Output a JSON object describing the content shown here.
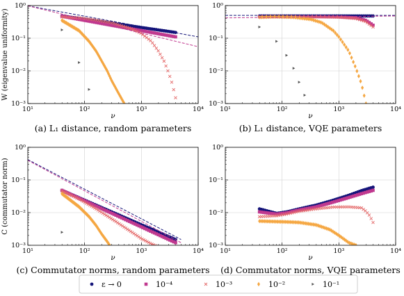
{
  "colors": {
    "eps0": "#15157a",
    "e4": "#c0398f",
    "e3": "#e46a6a",
    "e2": "#f5a742",
    "e1": "#555555",
    "fit_dark": "#15157a",
    "fit_magenta": "#c0398f",
    "grid": "#d0d0d0"
  },
  "legend": {
    "items": [
      {
        "key": "eps0",
        "label": "ε → 0",
        "marker": "circle"
      },
      {
        "key": "e4",
        "label": "10⁻⁴",
        "marker": "square"
      },
      {
        "key": "e3",
        "label": "10⁻³",
        "marker": "x"
      },
      {
        "key": "e2",
        "label": "10⁻²",
        "marker": "diamond"
      },
      {
        "key": "e1",
        "label": "10⁻¹",
        "marker": "triangle-right"
      }
    ]
  },
  "chart_data": [
    {
      "type": "scatter",
      "caption": "(a) L₁ distance, random parameters",
      "xlabel": "ν",
      "ylabel": "W (eigenvalue uniformity)",
      "xscale": "log",
      "yscale": "log",
      "xlim": [
        10,
        10000
      ],
      "ylim": [
        0.001,
        1
      ],
      "xticks": [
        "10¹",
        "10²",
        "10³",
        "10⁴"
      ],
      "yticks": [
        "10⁻³",
        "10⁻²",
        "10⁻¹",
        "10⁰"
      ],
      "grid": true,
      "fit_lines": [
        {
          "color_key": "fit_dark",
          "x": [
            10,
            10000
          ],
          "y": [
            0.98,
            0.11
          ]
        },
        {
          "color_key": "fit_magenta",
          "x": [
            10,
            10000
          ],
          "y": [
            0.98,
            0.055
          ]
        }
      ],
      "series": [
        {
          "key": "eps0",
          "x": [
            40,
            4000
          ],
          "y": [
            0.48,
            0.15
          ]
        },
        {
          "key": "e4",
          "x": [
            40,
            4000
          ],
          "y": [
            0.47,
            0.11
          ]
        },
        {
          "key": "e3",
          "x": [
            40,
            80,
            160,
            320,
            640,
            1000,
            1500,
            2000,
            2500,
            3000,
            3500,
            4000
          ],
          "y": [
            0.45,
            0.42,
            0.36,
            0.29,
            0.2,
            0.14,
            0.08,
            0.04,
            0.02,
            0.009,
            0.004,
            0.0015
          ]
        },
        {
          "key": "e2",
          "x": [
            40,
            80,
            120,
            160,
            200,
            250,
            300,
            400,
            500
          ],
          "y": [
            0.35,
            0.17,
            0.08,
            0.04,
            0.02,
            0.01,
            0.005,
            0.002,
            0.001
          ]
        },
        {
          "key": "e1",
          "x": [
            40,
            80,
            120
          ],
          "y": [
            0.18,
            0.018,
            0.0027
          ]
        }
      ]
    },
    {
      "type": "scatter",
      "caption": "(b) L₁ distance, VQE parameters",
      "xlabel": "ν",
      "ylabel": "",
      "xscale": "log",
      "yscale": "log",
      "xlim": [
        10,
        10000
      ],
      "ylim": [
        0.001,
        1
      ],
      "xticks": [
        "10¹",
        "10²",
        "10³",
        "10⁴"
      ],
      "yticks": [
        "10⁻³",
        "10⁻²",
        "10⁻¹",
        "10⁰"
      ],
      "grid": true,
      "fit_lines": [
        {
          "color_key": "fit_dark",
          "x": [
            10,
            10000
          ],
          "y": [
            0.5,
            0.5
          ]
        },
        {
          "color_key": "fit_magenta",
          "x": [
            10,
            10000
          ],
          "y": [
            0.42,
            0.48
          ]
        }
      ],
      "series": [
        {
          "key": "eps0",
          "x": [
            40,
            4000
          ],
          "y": [
            0.48,
            0.48
          ]
        },
        {
          "key": "e4",
          "x": [
            40,
            400,
            1000,
            2000,
            3000,
            4000
          ],
          "y": [
            0.46,
            0.46,
            0.45,
            0.42,
            0.35,
            0.25
          ]
        },
        {
          "key": "e3",
          "x": [
            40,
            400,
            1000,
            2000,
            3000,
            4000
          ],
          "y": [
            0.45,
            0.45,
            0.44,
            0.4,
            0.32,
            0.22
          ]
        },
        {
          "key": "e2",
          "x": [
            40,
            80,
            160,
            320,
            500,
            800,
            1000,
            1500,
            2000,
            2500,
            3000
          ],
          "y": [
            0.44,
            0.46,
            0.44,
            0.38,
            0.3,
            0.17,
            0.11,
            0.04,
            0.012,
            0.004,
            0.001
          ]
        },
        {
          "key": "e1",
          "x": [
            40,
            80,
            120,
            160,
            200,
            250
          ],
          "y": [
            0.22,
            0.08,
            0.03,
            0.012,
            0.0045,
            0.0018
          ]
        }
      ]
    },
    {
      "type": "scatter",
      "caption": "(c) Commutator norms, random parameters",
      "xlabel": "ν",
      "ylabel": "C (commutator norm)",
      "xscale": "log",
      "yscale": "log",
      "xlim": [
        10,
        10000
      ],
      "ylim": [
        0.001,
        1
      ],
      "xticks": [
        "10¹",
        "10²",
        "10³",
        "10⁴"
      ],
      "yticks": [
        "10⁻³",
        "10⁻²",
        "10⁻¹",
        "10⁰"
      ],
      "grid": true,
      "fit_lines": [
        {
          "color_key": "fit_dark",
          "x": [
            10,
            5000
          ],
          "y": [
            0.42,
            0.0015
          ]
        },
        {
          "color_key": "fit_magenta",
          "x": [
            10,
            5000
          ],
          "y": [
            0.4,
            0.0012
          ]
        }
      ],
      "series": [
        {
          "key": "eps0",
          "x": [
            40,
            4000
          ],
          "y": [
            0.048,
            0.0015
          ]
        },
        {
          "key": "e4",
          "x": [
            40,
            4000
          ],
          "y": [
            0.048,
            0.0012
          ]
        },
        {
          "key": "e3",
          "x": [
            40,
            80,
            160,
            320,
            640,
            1000,
            1500,
            2000
          ],
          "y": [
            0.046,
            0.026,
            0.013,
            0.006,
            0.0027,
            0.0016,
            0.0011,
            0.0009
          ]
        },
        {
          "key": "e2",
          "x": [
            40,
            80,
            120,
            160,
            200,
            250,
            300
          ],
          "y": [
            0.038,
            0.015,
            0.0075,
            0.004,
            0.0022,
            0.0013,
            0.0008
          ]
        },
        {
          "key": "e1",
          "x": [
            40
          ],
          "y": [
            0.0025
          ]
        }
      ]
    },
    {
      "type": "scatter",
      "caption": "(d) Commutator norms, VQE parameters",
      "xlabel": "ν",
      "ylabel": "",
      "xscale": "log",
      "yscale": "log",
      "xlim": [
        10,
        10000
      ],
      "ylim": [
        0.001,
        1
      ],
      "xticks": [
        "10¹",
        "10²",
        "10³",
        "10⁴"
      ],
      "yticks": [
        "10⁻³",
        "10⁻²",
        "10⁻¹",
        "10⁰"
      ],
      "grid": true,
      "fit_lines": [],
      "series": [
        {
          "key": "eps0",
          "x": [
            40,
            80,
            120,
            200,
            400,
            800,
            1500,
            2500,
            4000
          ],
          "y": [
            0.013,
            0.0095,
            0.0105,
            0.013,
            0.017,
            0.024,
            0.034,
            0.047,
            0.06
          ]
        },
        {
          "key": "e4",
          "x": [
            40,
            80,
            120,
            200,
            400,
            800,
            1500,
            2500,
            4000
          ],
          "y": [
            0.0105,
            0.009,
            0.0098,
            0.012,
            0.015,
            0.021,
            0.029,
            0.038,
            0.048
          ]
        },
        {
          "key": "e3",
          "x": [
            40,
            80,
            120,
            200,
            400,
            800,
            1500,
            2500,
            3000,
            3500,
            4000
          ],
          "y": [
            0.0075,
            0.008,
            0.009,
            0.011,
            0.013,
            0.0148,
            0.015,
            0.014,
            0.011,
            0.008,
            0.005
          ]
        },
        {
          "key": "e2",
          "x": [
            40,
            80,
            120,
            200,
            400,
            700,
            1000,
            1500,
            2000
          ],
          "y": [
            0.0055,
            0.0053,
            0.0052,
            0.005,
            0.0042,
            0.003,
            0.002,
            0.0012,
            0.001
          ]
        }
      ]
    }
  ]
}
